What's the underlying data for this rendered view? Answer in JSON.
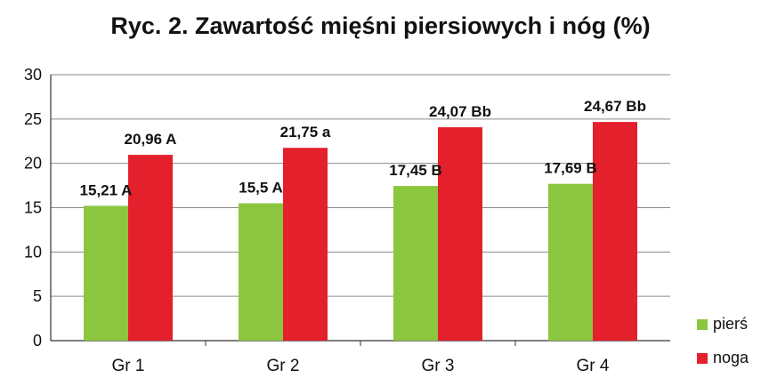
{
  "chart_data": {
    "type": "bar",
    "title": "Ryc. 2. Zawartość mięśni piersiowych i nóg (%)",
    "xlabel": "",
    "ylabel": "",
    "ylim": [
      0,
      30
    ],
    "yticks": [
      0,
      5,
      10,
      15,
      20,
      25,
      30
    ],
    "grid": true,
    "legend_position": "right",
    "categories": [
      "Gr 1",
      "Gr 2",
      "Gr 3",
      "Gr 4"
    ],
    "series": [
      {
        "name": "pierś",
        "color": "#8cc63f",
        "values": [
          15.21,
          15.5,
          17.45,
          17.69
        ],
        "labels": [
          "15,21 A",
          "15,5 A",
          "17,45 B",
          "17,69 B"
        ]
      },
      {
        "name": "noga",
        "color": "#e3202c",
        "values": [
          20.96,
          21.75,
          24.07,
          24.67
        ],
        "labels": [
          "20,96 A",
          "21,75 a",
          "24,07 Bb",
          "24,67 Bb"
        ]
      }
    ]
  }
}
